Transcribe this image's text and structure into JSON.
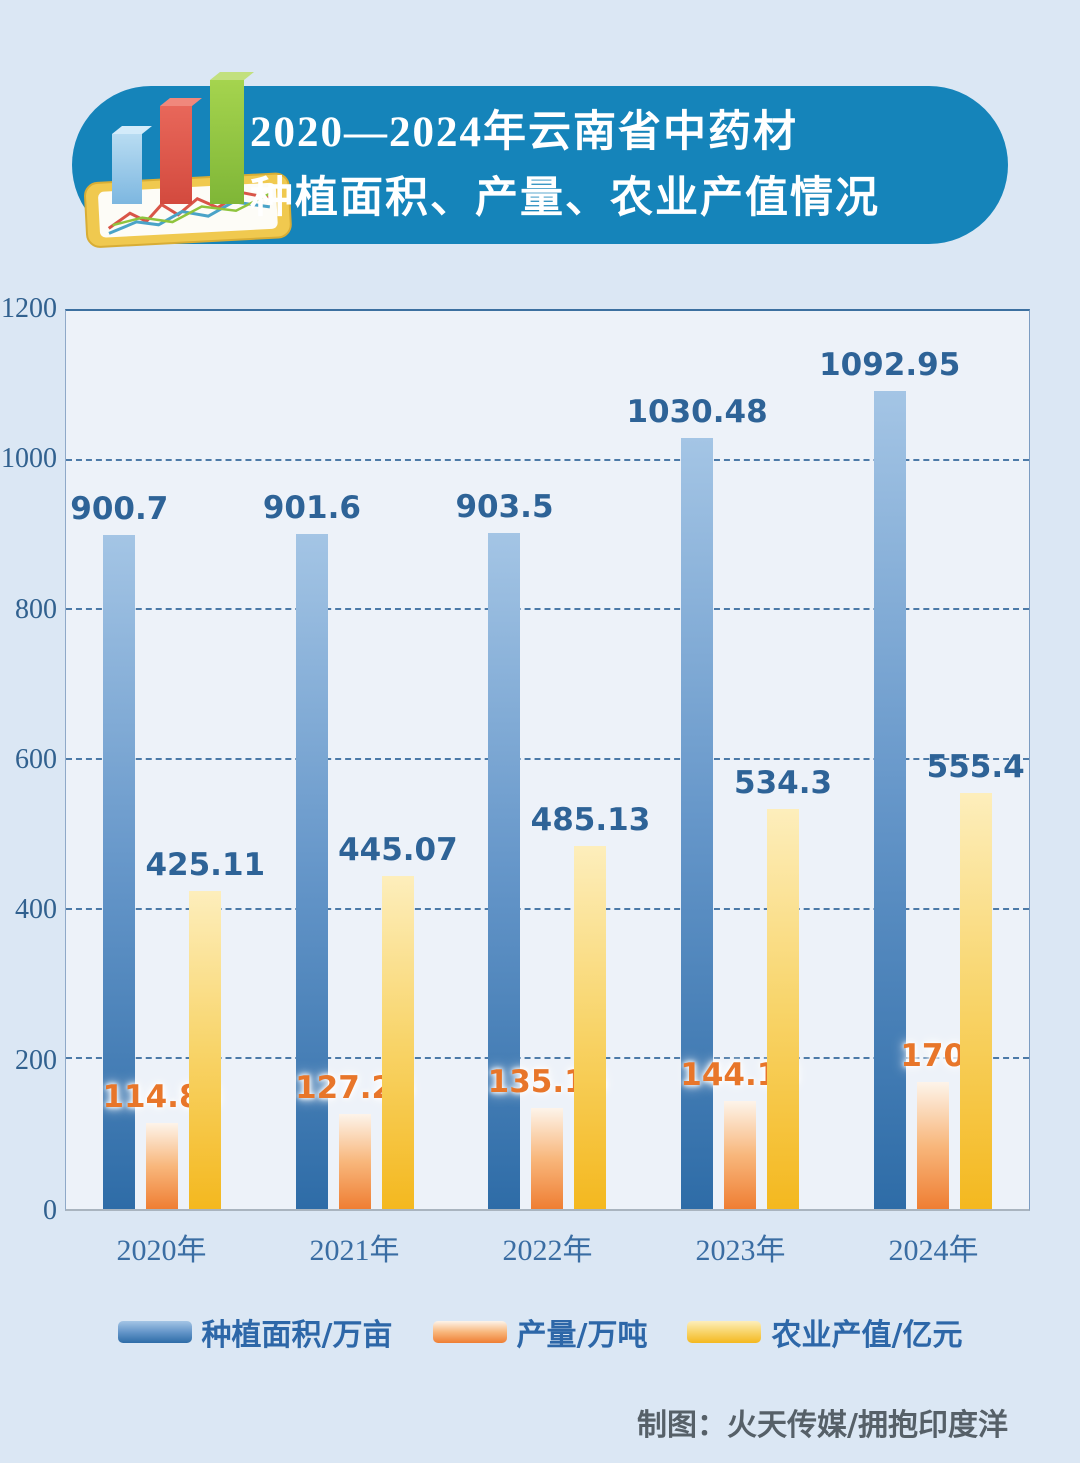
{
  "header": {
    "title_line1": "2020—2024年云南省中药材",
    "title_line2": "种植面积、产量、农业产值情况",
    "banner_color": "#1584ba",
    "icon": "bar-chart-tablet-icon"
  },
  "chart_data": {
    "type": "bar",
    "title": "2020—2024年云南省中药材种植面积、产量、农业产值情况",
    "categories": [
      "2020年",
      "2021年",
      "2022年",
      "2023年",
      "2024年"
    ],
    "series": [
      {
        "name": "种植面积/万亩",
        "values": [
          900.7,
          901.6,
          903.5,
          1030.48,
          1092.95
        ],
        "labels": [
          "900.7",
          "901.6",
          "903.5",
          "1030.48",
          "1092.95"
        ],
        "gradient": [
          "#a4c5e5",
          "#6596c9",
          "#2e6ca7"
        ],
        "label_color": "#2e6397",
        "label_glow": false
      },
      {
        "name": "产量/万吨",
        "values": [
          114.83,
          127.25,
          135.16,
          144.18,
          170
        ],
        "labels": [
          "114.83",
          "127.25",
          "135.16",
          "144.18",
          "170"
        ],
        "gradient": [
          "#fdf4ea",
          "#f8b77c",
          "#ef7e33"
        ],
        "label_color": "#e8762a",
        "label_glow": true
      },
      {
        "name": "农业产值/亿元",
        "values": [
          425.11,
          445.07,
          485.13,
          534.3,
          555.4
        ],
        "labels": [
          "425.11",
          "445.07",
          "485.13",
          "534.3",
          "555.4"
        ],
        "gradient": [
          "#fdeebc",
          "#f8d469",
          "#f4b81f"
        ],
        "label_color": "#2e6397",
        "label_glow": false
      }
    ],
    "xlabel": "",
    "ylabel": "",
    "ylim": [
      0,
      1200
    ],
    "yticks": [
      0,
      200,
      400,
      600,
      800,
      1000,
      1200
    ],
    "grid": "horizontal-dashed",
    "legend_position": "bottom"
  },
  "footer": {
    "credit": "制图：火天传媒/拥抱印度洋"
  }
}
